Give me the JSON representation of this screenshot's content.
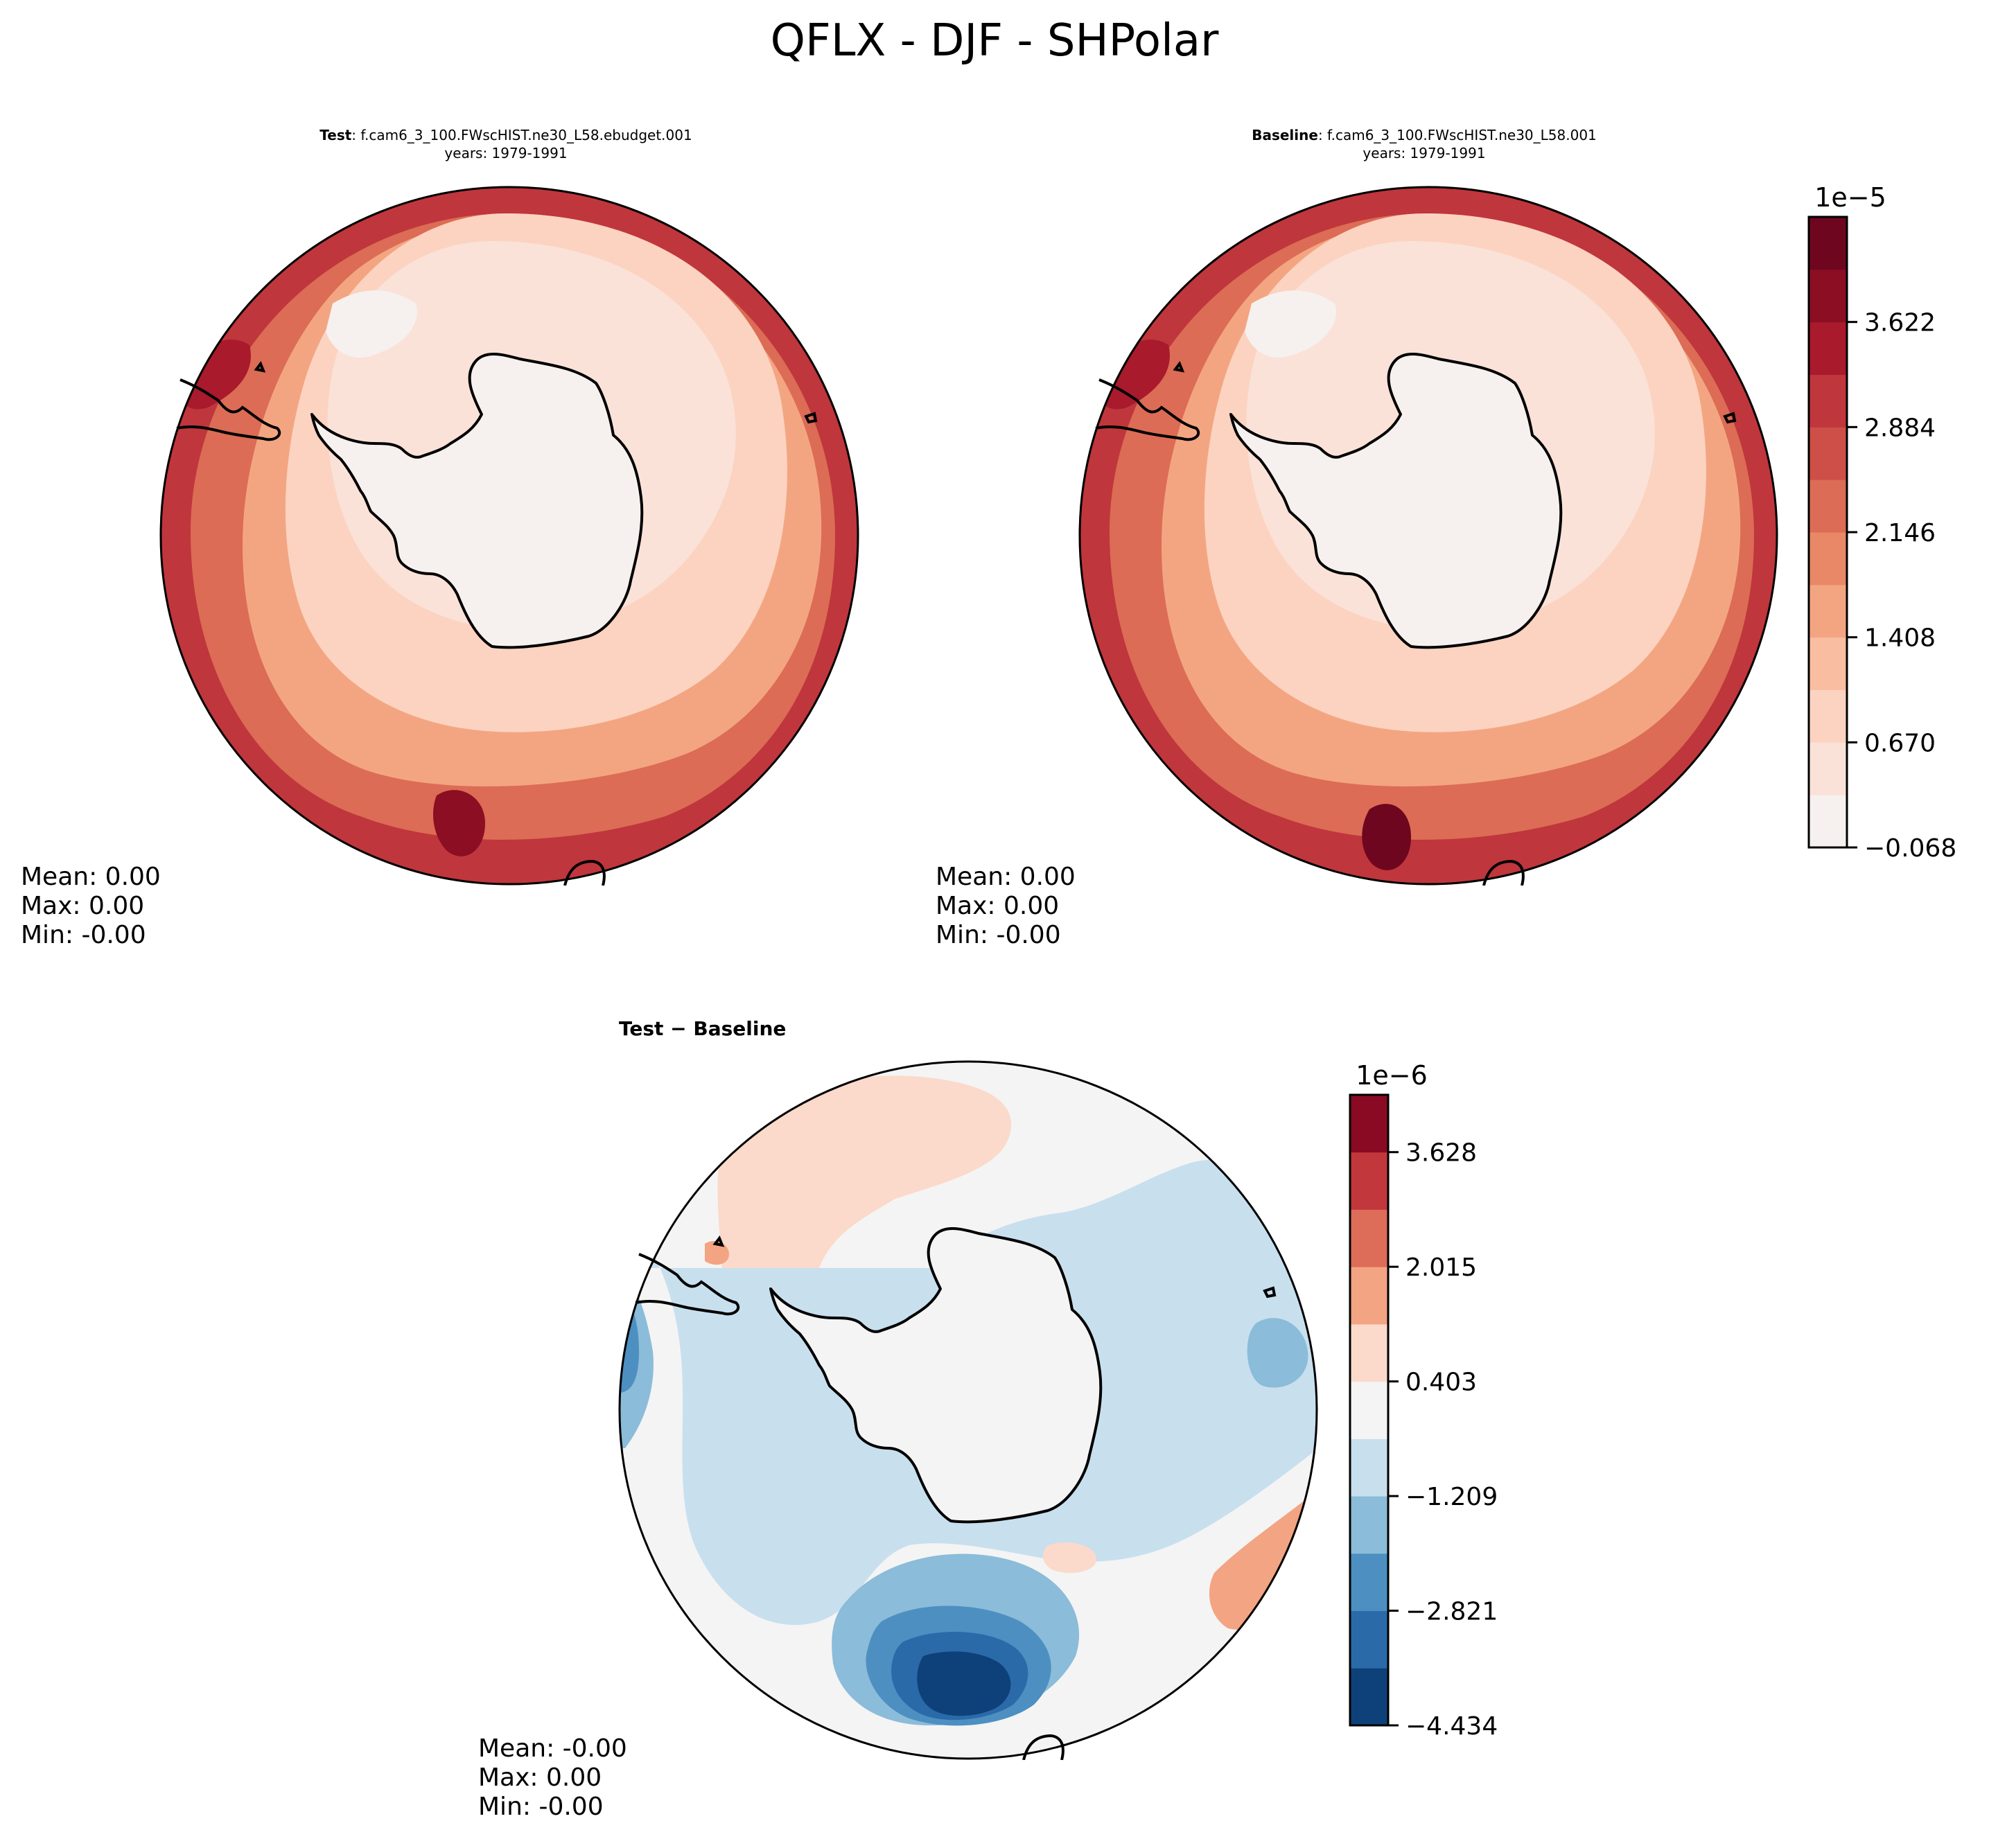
{
  "title": "QFLX - DJF - SHPolar",
  "colors": {
    "rdbu": [
      "#053061",
      "#134b87",
      "#2f79b5",
      "#5d9fcd",
      "#94c6df",
      "#c6dbef",
      "#e5eff5",
      "#f4f4f4",
      "#f9e0d4",
      "#fcc5ab",
      "#f3a481",
      "#e0775d",
      "#c9433f",
      "#b01f2e",
      "#810f24",
      "#67001f"
    ],
    "top_levels": [
      "#f6f1ee",
      "#fae2d8",
      "#fcd3c0",
      "#f9bea1",
      "#f3a582",
      "#e88866",
      "#dc6c55",
      "#cd4f48",
      "#bf363c",
      "#a81a2c",
      "#8b0e23",
      "#6e061f"
    ],
    "diff_levels": [
      "#0e4179",
      "#2a6aa9",
      "#4d8fc1",
      "#8bbcd9",
      "#c8dfee",
      "#f4f4f4",
      "#fbdacb",
      "#f3a482",
      "#dd6c59",
      "#c2373c",
      "#8a0a24"
    ]
  },
  "panels": {
    "test": {
      "label_bold": "Test",
      "case": ": f.cam6_3_100.FWscHIST.ne30_L58.ebudget.001",
      "years": "years: 1979-1991",
      "stats": [
        "Mean:  0.00",
        "Max:  0.00",
        "Min: -0.00"
      ]
    },
    "baseline": {
      "label_bold": "Baseline",
      "case": ": f.cam6_3_100.FWscHIST.ne30_L58.001",
      "years": "years: 1979-1991",
      "stats": [
        "Mean:  0.00",
        "Max:  0.00",
        "Min: -0.00"
      ]
    },
    "diff": {
      "title": "Test − Baseline",
      "stats": [
        "Mean: -0.00",
        "Max:  0.00",
        "Min: -0.00"
      ]
    }
  },
  "colorbars": {
    "main": {
      "offset": "1e−5",
      "ticks": [
        "−0.068",
        "0.670",
        "1.408",
        "2.146",
        "2.884",
        "3.622"
      ],
      "levels": 12
    },
    "diff": {
      "offset": "1e−6",
      "ticks": [
        "−4.434",
        "−2.821",
        "−1.209",
        "0.403",
        "2.015",
        "3.628"
      ],
      "levels": 11
    }
  },
  "chart_data": [
    {
      "type": "heatmap",
      "projection": "south-polar-stereographic",
      "variable": "QFLX",
      "season": "DJF",
      "region": "SHPolar",
      "title": "Test: f.cam6_3_100.FWscHIST.ne30_L58.ebudget.001, years: 1979-1991",
      "units_scale": "1e-5",
      "contour_levels": [
        -0.068,
        0.301,
        0.67,
        1.039,
        1.408,
        1.777,
        2.146,
        2.515,
        2.884,
        3.253,
        3.622,
        3.991
      ],
      "stats": {
        "mean": 0.0,
        "max": 0.0,
        "min": -0.0
      },
      "description": "near 0 over Antarctica, ~0.7-1.4 over sea ice zone, 2.5-4 in the subtropical ring"
    },
    {
      "type": "heatmap",
      "projection": "south-polar-stereographic",
      "variable": "QFLX",
      "season": "DJF",
      "region": "SHPolar",
      "title": "Baseline: f.cam6_3_100.FWscHIST.ne30_L58.001, years: 1979-1991",
      "units_scale": "1e-5",
      "contour_levels": [
        -0.068,
        0.301,
        0.67,
        1.039,
        1.408,
        1.777,
        2.146,
        2.515,
        2.884,
        3.253,
        3.622,
        3.991
      ],
      "stats": {
        "mean": 0.0,
        "max": 0.0,
        "min": -0.0
      }
    },
    {
      "type": "heatmap",
      "projection": "south-polar-stereographic",
      "title": "Test − Baseline",
      "units_scale": "1e-6",
      "contour_levels": [
        -4.434,
        -3.628,
        -2.821,
        -2.015,
        -1.209,
        -0.403,
        0.403,
        1.209,
        2.015,
        2.821,
        3.628,
        4.434
      ],
      "stats": {
        "mean": -0.0,
        "max": 0.0,
        "min": -0.0
      },
      "description": "mostly near zero; negative anomaly (down to ~-4.4) near the bottom of the map, weak positive near the Antarctic Peninsula"
    }
  ]
}
